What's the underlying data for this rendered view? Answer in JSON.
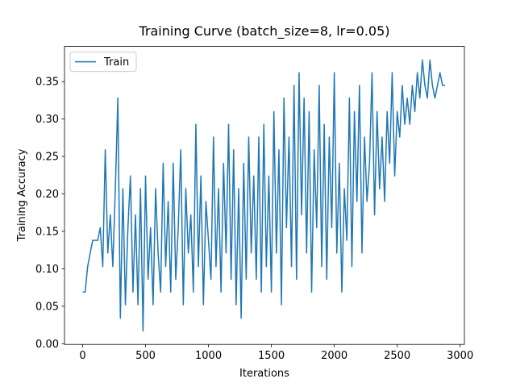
{
  "chart_data": {
    "type": "line",
    "title": "Training Curve (batch_size=8, lr=0.05)",
    "x_label": "Iterations",
    "y_label": "Training Accuracy",
    "x": [
      0,
      20,
      40,
      60,
      80,
      100,
      120,
      140,
      160,
      180,
      200,
      220,
      240,
      260,
      280,
      300,
      320,
      340,
      360,
      380,
      400,
      420,
      440,
      460,
      480,
      500,
      520,
      540,
      560,
      580,
      600,
      620,
      640,
      660,
      680,
      700,
      720,
      740,
      760,
      780,
      800,
      820,
      840,
      860,
      880,
      900,
      920,
      940,
      960,
      980,
      1000,
      1020,
      1040,
      1060,
      1080,
      1100,
      1120,
      1140,
      1160,
      1180,
      1200,
      1220,
      1240,
      1260,
      1280,
      1300,
      1320,
      1340,
      1360,
      1380,
      1400,
      1420,
      1440,
      1460,
      1480,
      1500,
      1520,
      1540,
      1560,
      1580,
      1600,
      1620,
      1640,
      1660,
      1680,
      1700,
      1720,
      1740,
      1760,
      1780,
      1800,
      1820,
      1840,
      1860,
      1880,
      1900,
      1920,
      1940,
      1960,
      1980,
      2000,
      2020,
      2040,
      2060,
      2080,
      2100,
      2120,
      2140,
      2160,
      2180,
      2200,
      2220,
      2240,
      2260,
      2280,
      2300,
      2320,
      2340,
      2360,
      2380,
      2400,
      2420,
      2440,
      2460,
      2480,
      2500,
      2520,
      2540,
      2560,
      2580,
      2600,
      2620,
      2640,
      2660,
      2680,
      2700,
      2720,
      2740,
      2760,
      2780,
      2800,
      2820,
      2840,
      2860,
      2880
    ],
    "series": [
      {
        "name": "Train",
        "color": "#1f77b4",
        "values": [
          0.069,
          0.069,
          0.103,
          0.121,
          0.138,
          0.138,
          0.138,
          0.155,
          0.103,
          0.259,
          0.121,
          0.172,
          0.103,
          0.207,
          0.328,
          0.034,
          0.207,
          0.052,
          0.155,
          0.224,
          0.069,
          0.172,
          0.052,
          0.207,
          0.017,
          0.224,
          0.086,
          0.155,
          0.052,
          0.207,
          0.121,
          0.069,
          0.241,
          0.103,
          0.19,
          0.069,
          0.241,
          0.086,
          0.155,
          0.259,
          0.052,
          0.207,
          0.121,
          0.172,
          0.069,
          0.293,
          0.103,
          0.224,
          0.052,
          0.19,
          0.138,
          0.086,
          0.276,
          0.103,
          0.207,
          0.069,
          0.241,
          0.121,
          0.293,
          0.086,
          0.259,
          0.052,
          0.207,
          0.034,
          0.241,
          0.086,
          0.276,
          0.121,
          0.224,
          0.086,
          0.276,
          0.069,
          0.293,
          0.103,
          0.224,
          0.069,
          0.31,
          0.121,
          0.259,
          0.052,
          0.328,
          0.155,
          0.276,
          0.103,
          0.345,
          0.086,
          0.362,
          0.172,
          0.328,
          0.121,
          0.31,
          0.069,
          0.259,
          0.155,
          0.345,
          0.103,
          0.293,
          0.086,
          0.276,
          0.155,
          0.362,
          0.121,
          0.241,
          0.069,
          0.207,
          0.138,
          0.328,
          0.103,
          0.31,
          0.19,
          0.345,
          0.121,
          0.276,
          0.19,
          0.241,
          0.362,
          0.172,
          0.31,
          0.207,
          0.276,
          0.19,
          0.31,
          0.241,
          0.362,
          0.224,
          0.31,
          0.276,
          0.345,
          0.293,
          0.328,
          0.293,
          0.345,
          0.31,
          0.362,
          0.328,
          0.379,
          0.345,
          0.328,
          0.379,
          0.345,
          0.328,
          0.345,
          0.362,
          0.345,
          0.345
        ]
      }
    ],
    "xlim": [
      -144,
      3034
    ],
    "ylim": [
      -0.001,
      0.397
    ],
    "xticks": [
      0,
      500,
      1000,
      1500,
      2000,
      2500,
      3000
    ],
    "yticks": [
      {
        "value": 0,
        "label": "0.00"
      },
      {
        "value": 0.05,
        "label": "0.05"
      },
      {
        "value": 0.1,
        "label": "0.10"
      },
      {
        "value": 0.15,
        "label": "0.15"
      },
      {
        "value": 0.2,
        "label": "0.20"
      },
      {
        "value": 0.25,
        "label": "0.25"
      },
      {
        "value": 0.3,
        "label": "0.30"
      },
      {
        "value": 0.35,
        "label": "0.35"
      }
    ],
    "legend": "upper left",
    "grid": false
  }
}
